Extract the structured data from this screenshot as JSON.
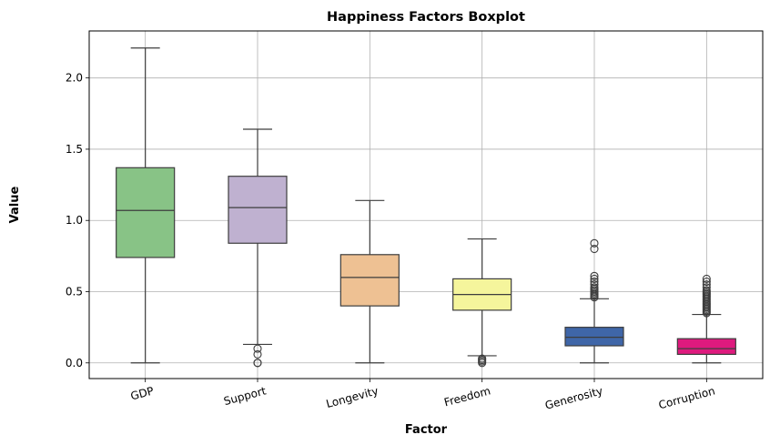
{
  "chart_data": {
    "type": "boxplot",
    "title": "Happiness Factors Boxplot",
    "xlabel": "Factor",
    "ylabel": "Value",
    "ylim": [
      -0.11,
      2.33
    ],
    "yticks": [
      0.0,
      0.5,
      1.0,
      1.5,
      2.0
    ],
    "ytick_labels": [
      "0.0",
      "0.5",
      "1.0",
      "1.5",
      "2.0"
    ],
    "grid": true,
    "legend": "none",
    "categories": [
      "GDP",
      "Support",
      "Longevity",
      "Freedom",
      "Generosity",
      "Corruption"
    ],
    "colors": [
      "#88c386",
      "#bfb1d0",
      "#eec193",
      "#f5f59c",
      "#3f66a8",
      "#de1a7e"
    ],
    "median_color": "#3d3d3d",
    "boxes": [
      {
        "name": "GDP",
        "min": 0.0,
        "q1": 0.74,
        "median": 1.07,
        "q3": 1.37,
        "max": 2.21,
        "outliers": []
      },
      {
        "name": "Support",
        "min": 0.13,
        "q1": 0.84,
        "median": 1.09,
        "q3": 1.31,
        "max": 1.64,
        "outliers": [
          0.0,
          0.0,
          0.06,
          0.1
        ]
      },
      {
        "name": "Longevity",
        "min": 0.0,
        "q1": 0.4,
        "median": 0.6,
        "q3": 0.76,
        "max": 1.14,
        "outliers": []
      },
      {
        "name": "Freedom",
        "min": 0.05,
        "q1": 0.37,
        "median": 0.48,
        "q3": 0.59,
        "max": 0.87,
        "outliers": [
          0.0,
          0.01,
          0.02,
          0.03
        ]
      },
      {
        "name": "Generosity",
        "min": 0.0,
        "q1": 0.12,
        "median": 0.18,
        "q3": 0.25,
        "max": 0.45,
        "outliers": [
          0.46,
          0.47,
          0.48,
          0.49,
          0.5,
          0.51,
          0.52,
          0.53,
          0.55,
          0.57,
          0.59,
          0.61,
          0.8,
          0.84
        ]
      },
      {
        "name": "Corruption",
        "min": 0.0,
        "q1": 0.06,
        "median": 0.1,
        "q3": 0.17,
        "max": 0.34,
        "outliers": [
          0.35,
          0.36,
          0.37,
          0.38,
          0.39,
          0.4,
          0.41,
          0.42,
          0.43,
          0.44,
          0.45,
          0.46,
          0.47,
          0.48,
          0.49,
          0.5,
          0.51,
          0.53,
          0.55,
          0.57,
          0.59
        ]
      }
    ]
  }
}
